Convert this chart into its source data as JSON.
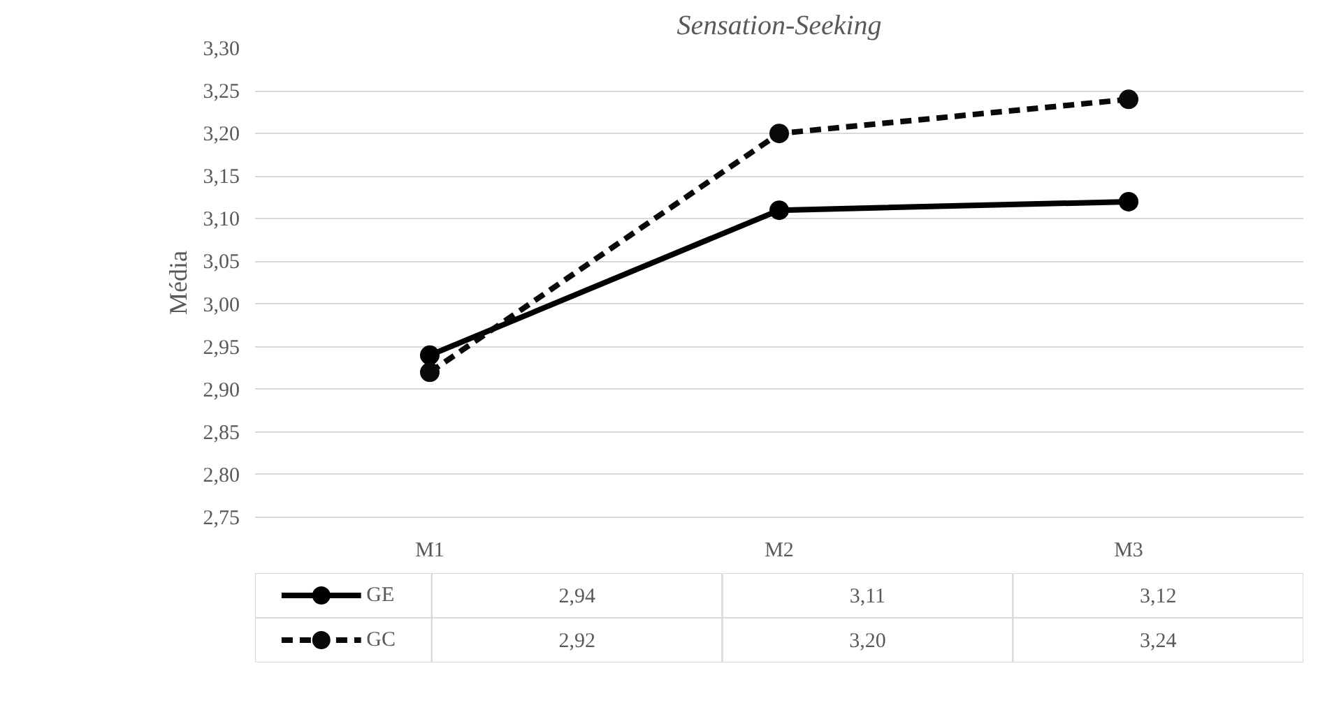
{
  "chart_data": {
    "type": "line",
    "title": "Sensation-Seeking",
    "ylabel": "Média",
    "categories": [
      "M1",
      "M2",
      "M3"
    ],
    "series": [
      {
        "name": "GE",
        "color": "#000000",
        "values": [
          2.94,
          3.11,
          3.12
        ],
        "value_labels": [
          "2,94",
          "3,11",
          "3,12"
        ],
        "line_style": "solid"
      },
      {
        "name": "GC",
        "color": "#0a0a0a",
        "values": [
          2.92,
          3.2,
          3.24
        ],
        "value_labels": [
          "2,92",
          "3,20",
          "3,24"
        ],
        "line_style": "dashed"
      }
    ],
    "ylim": [
      2.75,
      3.3
    ],
    "yticks": [
      {
        "value": 2.75,
        "label": "2,75"
      },
      {
        "value": 2.8,
        "label": "2,80"
      },
      {
        "value": 2.85,
        "label": "2,85"
      },
      {
        "value": 2.9,
        "label": "2,90"
      },
      {
        "value": 2.95,
        "label": "2,95"
      },
      {
        "value": 3.0,
        "label": "3,00"
      },
      {
        "value": 3.05,
        "label": "3,05"
      },
      {
        "value": 3.1,
        "label": "3,10"
      },
      {
        "value": 3.15,
        "label": "3,15"
      },
      {
        "value": 3.2,
        "label": "3,20"
      },
      {
        "value": 3.25,
        "label": "3,25"
      },
      {
        "value": 3.3,
        "label": "3,30"
      }
    ],
    "grid": "y",
    "marker": "circle",
    "legend": "bottom"
  }
}
